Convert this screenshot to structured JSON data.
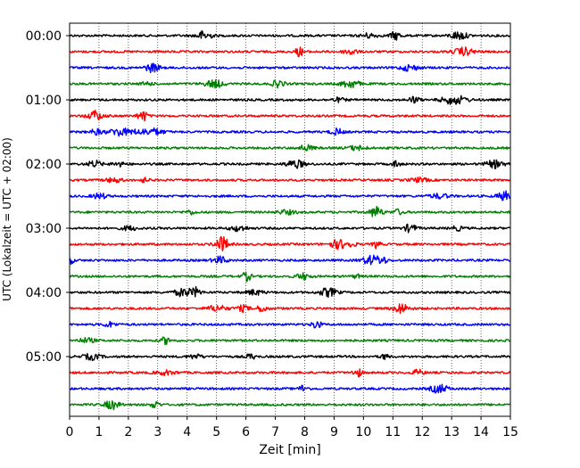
{
  "chart_data": {
    "type": "line",
    "title": "",
    "xlabel": "Zeit  [min]",
    "ylabel": "UTC (Lokalzeit = UTC + 02:00)",
    "xlim": [
      0,
      15
    ],
    "xticks": [
      "0",
      "1",
      "2",
      "3",
      "4",
      "5",
      "6",
      "7",
      "8",
      "9",
      "10",
      "11",
      "12",
      "13",
      "14",
      "15"
    ],
    "yticks": [
      "00:00",
      "01:00",
      "02:00",
      "03:00",
      "04:00",
      "05:00"
    ],
    "grid": "vertical dotted lines at each minute",
    "trace_interval_minutes": 15,
    "trace_colors": [
      "#000000",
      "#ff0000",
      "#0000ff",
      "#008000"
    ],
    "series": [
      {
        "start": "00:00",
        "color": "#000000"
      },
      {
        "start": "00:15",
        "color": "#ff0000"
      },
      {
        "start": "00:30",
        "color": "#0000ff"
      },
      {
        "start": "00:45",
        "color": "#008000"
      },
      {
        "start": "01:00",
        "color": "#000000"
      },
      {
        "start": "01:15",
        "color": "#ff0000"
      },
      {
        "start": "01:30",
        "color": "#0000ff"
      },
      {
        "start": "01:45",
        "color": "#008000"
      },
      {
        "start": "02:00",
        "color": "#000000"
      },
      {
        "start": "02:15",
        "color": "#ff0000"
      },
      {
        "start": "02:30",
        "color": "#0000ff"
      },
      {
        "start": "02:45",
        "color": "#008000"
      },
      {
        "start": "03:00",
        "color": "#000000"
      },
      {
        "start": "03:15",
        "color": "#ff0000"
      },
      {
        "start": "03:30",
        "color": "#0000ff"
      },
      {
        "start": "03:45",
        "color": "#008000"
      },
      {
        "start": "04:00",
        "color": "#000000"
      },
      {
        "start": "04:15",
        "color": "#ff0000"
      },
      {
        "start": "04:30",
        "color": "#0000ff"
      },
      {
        "start": "04:45",
        "color": "#008000"
      },
      {
        "start": "05:00",
        "color": "#000000"
      },
      {
        "start": "05:15",
        "color": "#ff0000"
      },
      {
        "start": "05:30",
        "color": "#0000ff"
      },
      {
        "start": "05:45",
        "color": "#008000"
      }
    ]
  }
}
